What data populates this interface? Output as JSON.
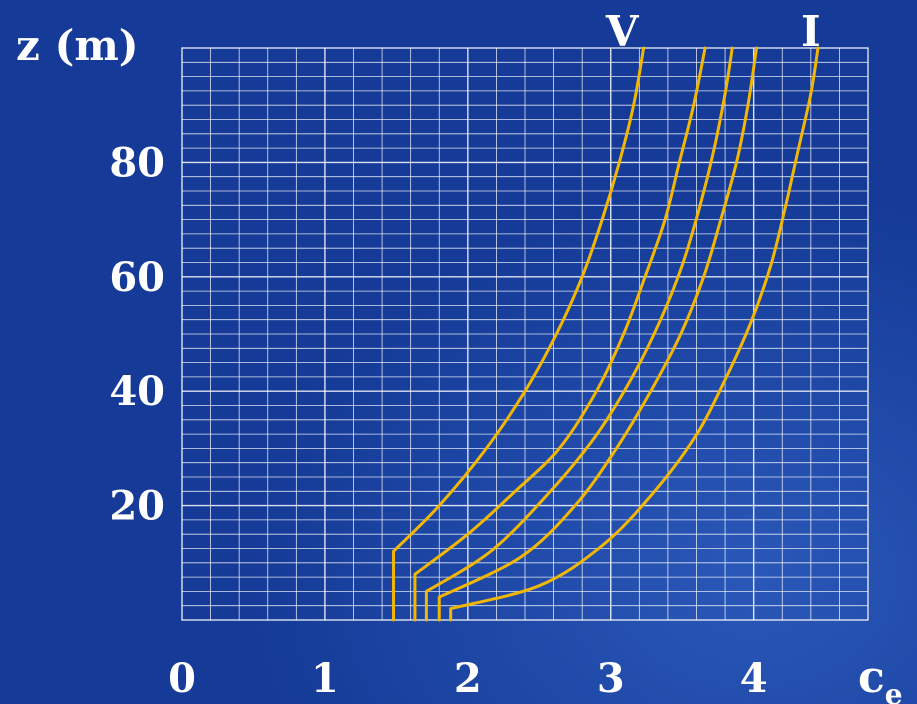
{
  "chart_data": {
    "type": "line",
    "ylabel": "z (m)",
    "xlabel_main": "c",
    "xlabel_sub": "e",
    "xlim": [
      0,
      4.8
    ],
    "ylim": [
      0,
      100
    ],
    "x_ticks": [
      0,
      1,
      2,
      3,
      4
    ],
    "y_ticks": [
      20,
      40,
      60,
      80
    ],
    "grid": true,
    "line_color": "#f2b705",
    "grid_color": "#ffffff",
    "annotations": [
      {
        "text": "V",
        "x": 3.08,
        "y": 100
      },
      {
        "text": "I",
        "x": 4.4,
        "y": 100
      }
    ],
    "series": [
      {
        "points": [
          [
            1.48,
            0
          ],
          [
            1.48,
            12
          ],
          [
            1.8,
            20
          ],
          [
            2.13,
            30
          ],
          [
            2.4,
            40
          ],
          [
            2.62,
            50
          ],
          [
            2.8,
            60
          ],
          [
            2.94,
            70
          ],
          [
            3.06,
            80
          ],
          [
            3.16,
            90
          ],
          [
            3.23,
            100
          ]
        ]
      },
      {
        "points": [
          [
            1.63,
            0
          ],
          [
            1.63,
            8
          ],
          [
            2.0,
            15
          ],
          [
            2.31,
            22
          ],
          [
            2.64,
            30
          ],
          [
            2.9,
            40
          ],
          [
            3.09,
            50
          ],
          [
            3.24,
            60
          ],
          [
            3.38,
            70
          ],
          [
            3.48,
            80
          ],
          [
            3.58,
            90
          ],
          [
            3.66,
            100
          ]
        ]
      },
      {
        "points": [
          [
            1.71,
            0
          ],
          [
            1.71,
            5
          ],
          [
            2.16,
            12
          ],
          [
            2.56,
            22
          ],
          [
            2.89,
            32
          ],
          [
            3.14,
            42
          ],
          [
            3.34,
            52
          ],
          [
            3.5,
            62
          ],
          [
            3.62,
            72
          ],
          [
            3.72,
            82
          ],
          [
            3.8,
            92
          ],
          [
            3.85,
            100
          ]
        ]
      },
      {
        "points": [
          [
            1.8,
            0
          ],
          [
            1.8,
            4
          ],
          [
            2.37,
            11
          ],
          [
            2.75,
            20
          ],
          [
            3.04,
            30
          ],
          [
            3.28,
            40
          ],
          [
            3.49,
            50
          ],
          [
            3.65,
            60
          ],
          [
            3.77,
            70
          ],
          [
            3.88,
            80
          ],
          [
            3.96,
            90
          ],
          [
            4.02,
            100
          ]
        ]
      },
      {
        "points": [
          [
            1.88,
            0
          ],
          [
            1.88,
            2
          ],
          [
            2.5,
            6
          ],
          [
            2.94,
            13
          ],
          [
            3.29,
            22
          ],
          [
            3.59,
            32
          ],
          [
            3.8,
            42
          ],
          [
            3.98,
            52
          ],
          [
            4.12,
            62
          ],
          [
            4.22,
            72
          ],
          [
            4.31,
            82
          ],
          [
            4.4,
            92
          ],
          [
            4.45,
            100
          ]
        ]
      }
    ]
  }
}
